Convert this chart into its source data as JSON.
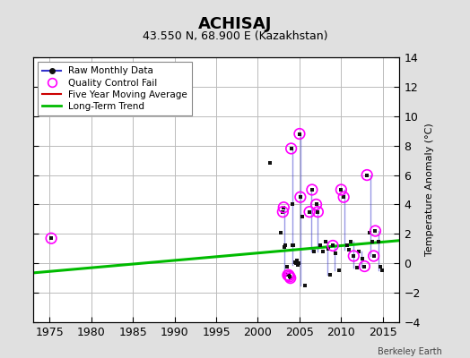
{
  "title": "ACHISAJ",
  "subtitle": "43.550 N, 68.900 E (Kazakhstan)",
  "ylabel": "Temperature Anomaly (°C)",
  "credit": "Berkeley Earth",
  "xlim": [
    1973,
    2017
  ],
  "ylim": [
    -4,
    14
  ],
  "yticks": [
    -4,
    -2,
    0,
    2,
    4,
    6,
    8,
    10,
    12,
    14
  ],
  "xticks": [
    1975,
    1980,
    1985,
    1990,
    1995,
    2000,
    2005,
    2010,
    2015
  ],
  "background_color": "#e0e0e0",
  "plot_bg_color": "#ffffff",
  "grid_color": "#bbbbbb",
  "raw_monthly_x": [
    1975.2,
    2001.5,
    2002.8,
    2003.0,
    2003.1,
    2003.2,
    2003.3,
    2003.5,
    2003.6,
    2003.7,
    2003.8,
    2003.9,
    2004.0,
    2004.1,
    2004.2,
    2004.3,
    2004.5,
    2004.6,
    2004.7,
    2004.8,
    2004.9,
    2005.0,
    2005.1,
    2005.3,
    2005.6,
    2006.2,
    2006.5,
    2006.7,
    2007.0,
    2007.2,
    2007.5,
    2007.8,
    2008.1,
    2008.4,
    2008.7,
    2009.0,
    2009.3,
    2009.7,
    2010.0,
    2010.3,
    2010.7,
    2010.9,
    2011.1,
    2011.5,
    2011.9,
    2012.1,
    2012.5,
    2012.8,
    2013.1,
    2013.4,
    2013.7,
    2013.9,
    2014.1,
    2014.5,
    2014.7,
    2014.9
  ],
  "raw_monthly_y": [
    1.7,
    6.8,
    2.1,
    3.5,
    3.8,
    1.1,
    1.2,
    -0.2,
    -0.8,
    -0.8,
    -0.9,
    -1.0,
    7.8,
    4.0,
    1.2,
    1.2,
    0.1,
    0.0,
    0.2,
    -0.1,
    0.0,
    8.8,
    4.5,
    3.2,
    -1.5,
    3.5,
    5.0,
    0.8,
    4.0,
    3.5,
    1.2,
    0.8,
    1.5,
    1.0,
    -0.8,
    1.2,
    0.7,
    -0.5,
    5.0,
    4.5,
    1.2,
    0.9,
    1.5,
    0.5,
    -0.3,
    0.8,
    0.3,
    -0.2,
    6.0,
    2.1,
    1.5,
    0.5,
    2.2,
    1.5,
    -0.2,
    -0.5
  ],
  "vertical_segments": [
    {
      "x": 2003.2,
      "y_top": 3.8,
      "y_bot": -1.0
    },
    {
      "x": 2004.1,
      "y_top": 7.8,
      "y_bot": -0.1
    },
    {
      "x": 2005.1,
      "y_top": 8.8,
      "y_bot": -1.5
    },
    {
      "x": 2006.4,
      "y_top": 5.0,
      "y_bot": 0.8
    },
    {
      "x": 2007.2,
      "y_top": 4.0,
      "y_bot": 0.8
    },
    {
      "x": 2008.3,
      "y_top": 1.5,
      "y_bot": -0.8
    },
    {
      "x": 2009.2,
      "y_top": 1.2,
      "y_bot": -0.5
    },
    {
      "x": 2010.4,
      "y_top": 5.0,
      "y_bot": 0.9
    },
    {
      "x": 2011.5,
      "y_top": 1.5,
      "y_bot": -0.3
    },
    {
      "x": 2012.4,
      "y_top": 0.8,
      "y_bot": -0.2
    },
    {
      "x": 2013.5,
      "y_top": 6.0,
      "y_bot": 0.5
    },
    {
      "x": 2014.5,
      "y_top": 2.2,
      "y_bot": -0.5
    }
  ],
  "qc_fail_x": [
    1975.2,
    2003.0,
    2003.1,
    2003.6,
    2003.7,
    2003.8,
    2003.9,
    2004.0,
    2005.0,
    2005.1,
    2006.2,
    2006.5,
    2007.0,
    2007.2,
    2009.0,
    2010.0,
    2010.3,
    2011.5,
    2012.8,
    2013.1,
    2013.9,
    2014.1
  ],
  "qc_fail_y": [
    1.7,
    3.5,
    3.8,
    -0.8,
    -0.8,
    -0.9,
    -1.0,
    7.8,
    8.8,
    4.5,
    3.5,
    5.0,
    4.0,
    3.5,
    1.2,
    5.0,
    4.5,
    0.5,
    -0.2,
    6.0,
    0.5,
    2.2
  ],
  "trend_x": [
    1973,
    2017
  ],
  "trend_y": [
    -0.65,
    1.55
  ],
  "line_color": "#3333cc",
  "line_color_alpha": 0.5,
  "dot_color": "#111111",
  "qc_color": "#ff00ff",
  "moving_avg_color": "#cc0000",
  "trend_color": "#00bb00"
}
